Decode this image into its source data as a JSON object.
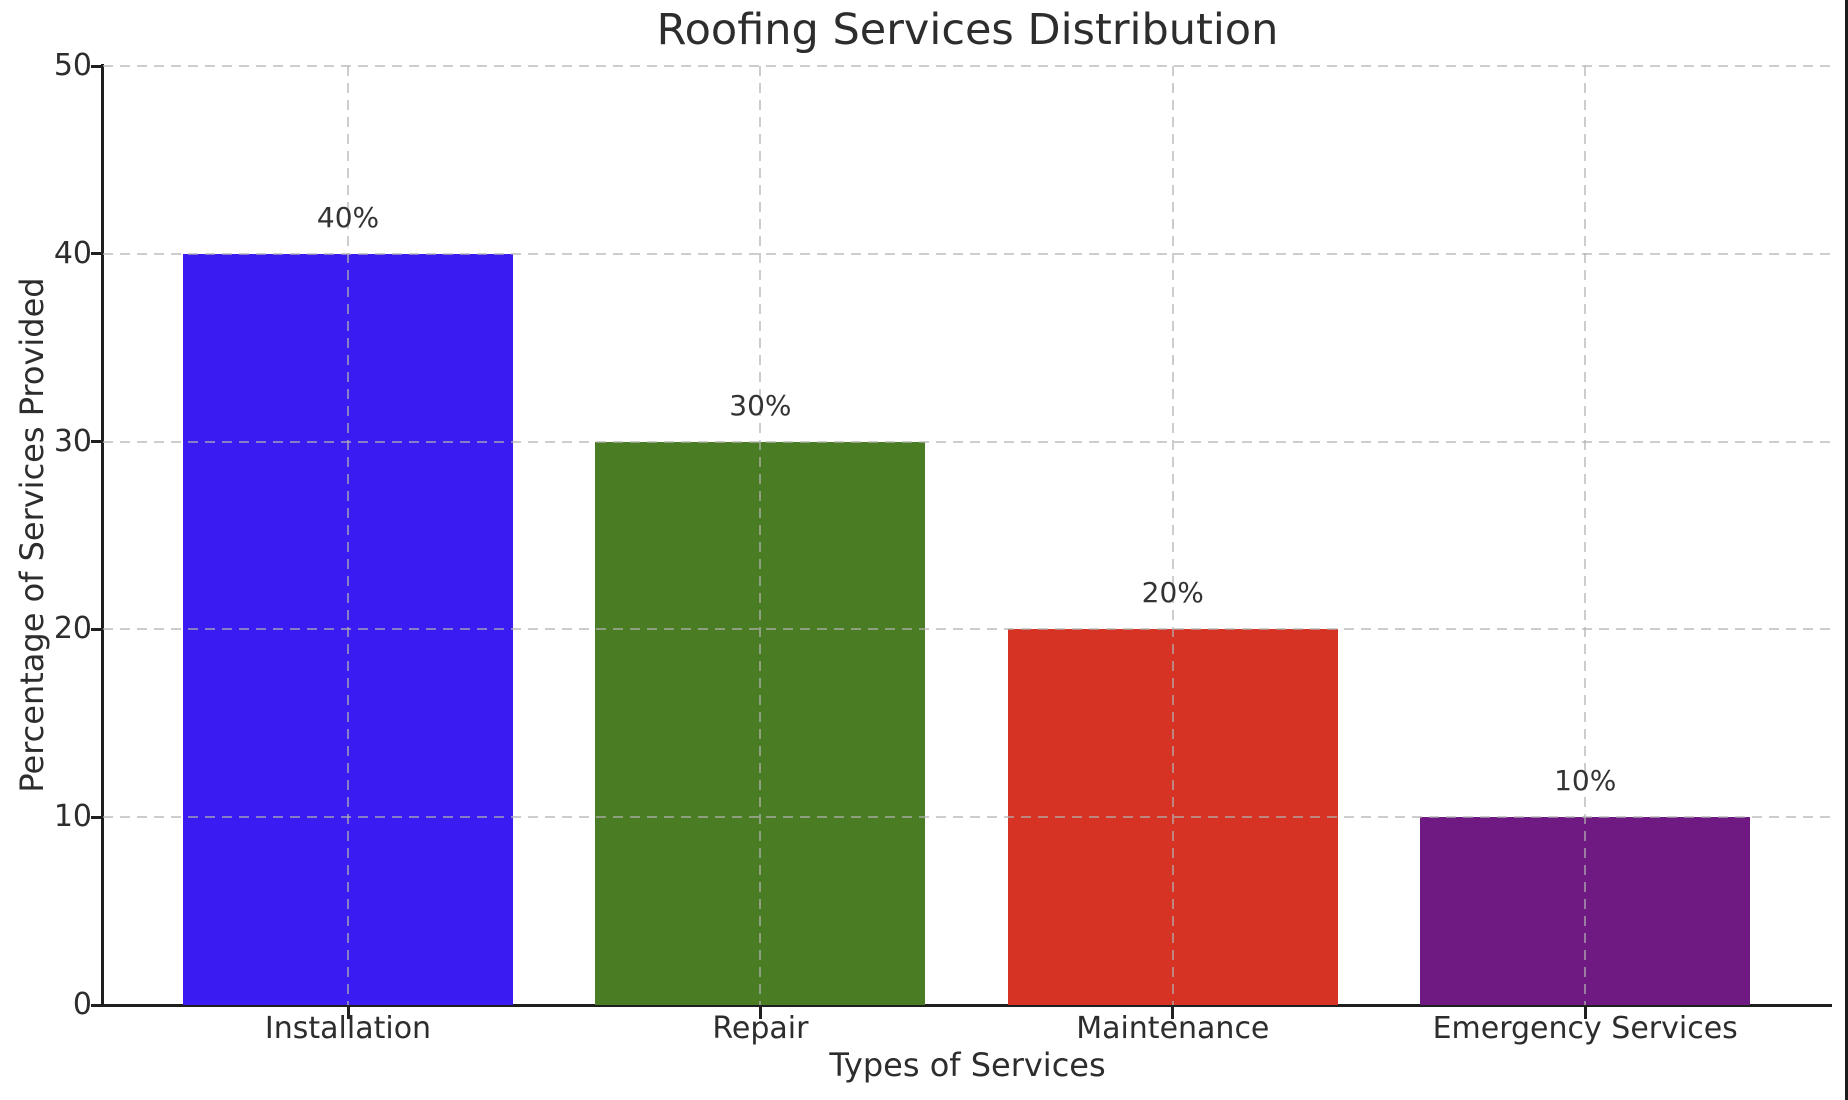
{
  "chart_data": {
    "type": "bar",
    "title": "Roofing Services Distribution",
    "xlabel": "Types of Services",
    "ylabel": "Percentage of Services Provided",
    "categories": [
      "Installation",
      "Repair",
      "Maintenance",
      "Emergency Services"
    ],
    "values": [
      40,
      30,
      20,
      10
    ],
    "value_labels": [
      "40%",
      "30%",
      "20%",
      "10%"
    ],
    "bar_colors": [
      "#3a1cf2",
      "#4a7c24",
      "#d63324",
      "#6f1a82"
    ],
    "ylim": [
      0,
      50
    ],
    "yticks": [
      0,
      10,
      20,
      30,
      40,
      50
    ],
    "ytick_labels": [
      "0",
      "10",
      "20",
      "30",
      "40",
      "50"
    ],
    "grid": "dashed gridlines on both axes, drawn over bars",
    "legend_position": "none",
    "background_color": "#ffffff",
    "text_color": "#2d2d2d",
    "axis_color": "#1f1f1f",
    "grid_color": "#b2b2b2"
  }
}
